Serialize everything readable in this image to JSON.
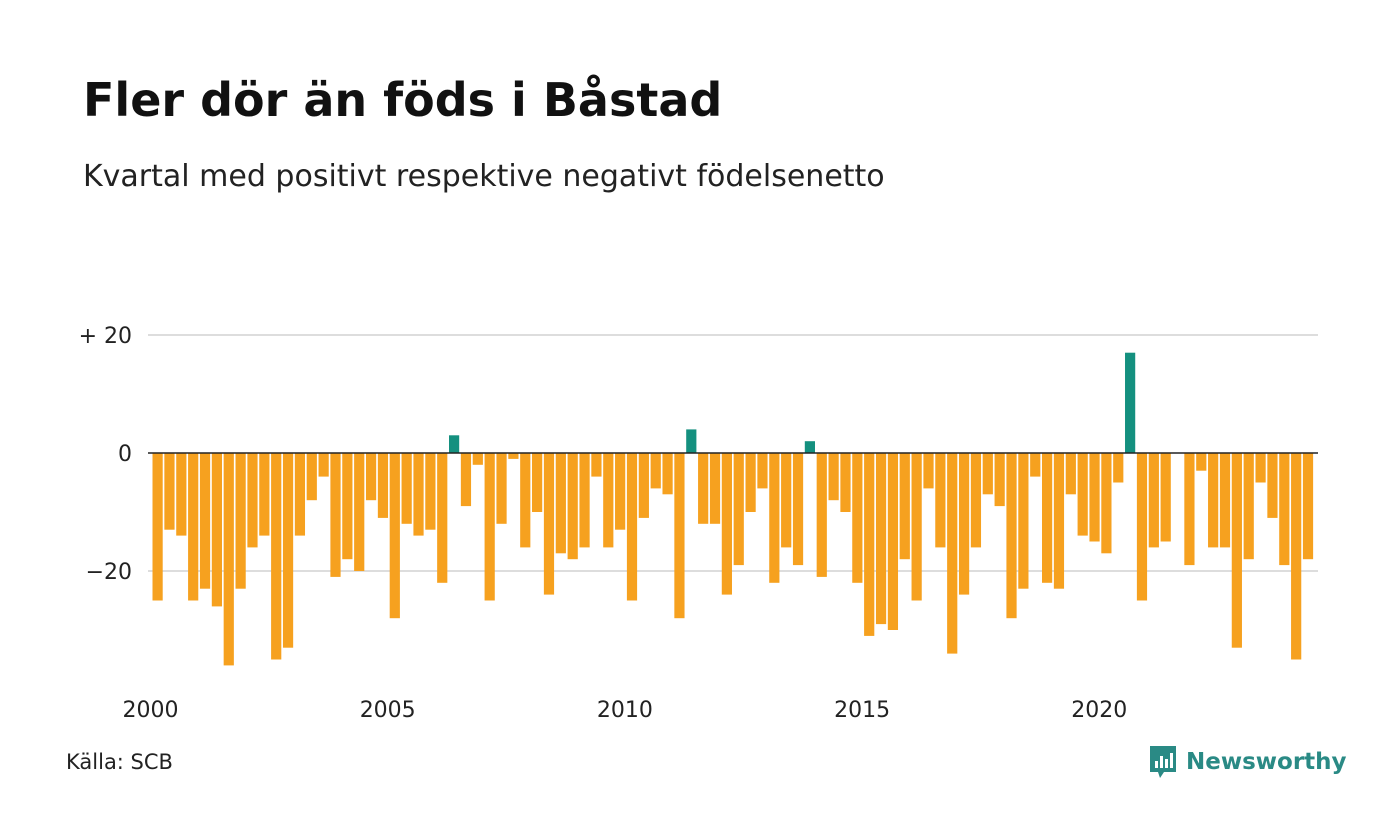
{
  "colors": {
    "positive": "#14907f",
    "negative": "#f6a11f",
    "grid": "#dddddd",
    "zero": "#222222",
    "brand": "#2a8a85"
  },
  "chart_data": {
    "type": "bar",
    "title": "Fler dör än föds i Båstad",
    "subtitle": "Kvartal med positivt respektive negativt födelsenetto",
    "x_start": 2000,
    "x_step": 0.25,
    "values": [
      -25,
      -13,
      -14,
      -25,
      -23,
      -26,
      -36,
      -23,
      -16,
      -14,
      -35,
      -33,
      -14,
      -8,
      -4,
      -21,
      -18,
      -20,
      -8,
      -11,
      -28,
      -12,
      -14,
      -13,
      -22,
      3,
      -9,
      -2,
      -25,
      -12,
      -1,
      -16,
      -10,
      -24,
      -17,
      -18,
      -16,
      -4,
      -16,
      -13,
      -25,
      -11,
      -6,
      -7,
      -28,
      4,
      -12,
      -12,
      -24,
      -19,
      -10,
      -6,
      -22,
      -16,
      -19,
      2,
      -21,
      -8,
      -10,
      -22,
      -31,
      -29,
      -30,
      -18,
      -25,
      -6,
      -16,
      -34,
      -24,
      -16,
      -7,
      -9,
      -28,
      -23,
      -4,
      -22,
      -23,
      -7,
      -14,
      -15,
      -17,
      -5,
      17,
      -25,
      -16,
      -15,
      0,
      -19,
      -3,
      -16,
      -16,
      -33,
      -18,
      -5,
      -11,
      -19,
      -35,
      -18
    ],
    "ylim": [
      -37,
      20
    ],
    "y_ticks": [
      {
        "value": 20,
        "label": "+ 20"
      },
      {
        "value": 0,
        "label": "0"
      },
      {
        "value": -20,
        "label": "−20"
      }
    ],
    "x_ticks": [
      {
        "value": 2000,
        "label": "2000"
      },
      {
        "value": 2005,
        "label": "2005"
      },
      {
        "value": 2010,
        "label": "2010"
      },
      {
        "value": 2015,
        "label": "2015"
      },
      {
        "value": 2020,
        "label": "2020"
      }
    ],
    "grid": true,
    "source": "Källa: SCB"
  },
  "logo": {
    "text": "Newsworthy",
    "icon": "chart-bubble-icon"
  }
}
